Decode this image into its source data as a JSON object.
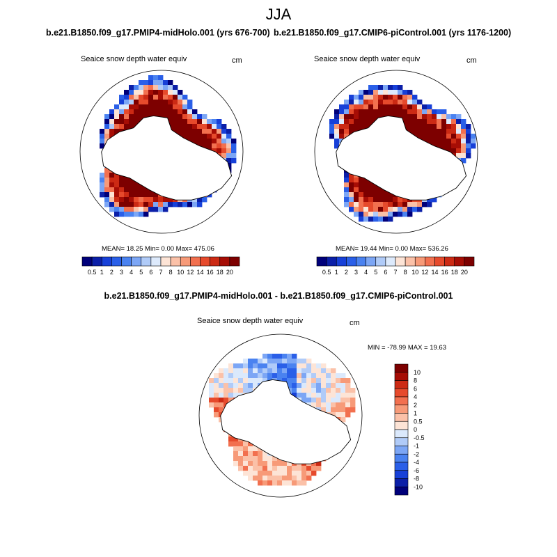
{
  "season": "JJA",
  "colors": {
    "abs_scale": [
      "#00007a",
      "#0b1fa8",
      "#1740d8",
      "#2a5fe8",
      "#4a82f0",
      "#7ca6f5",
      "#b0cbf8",
      "#ddeafc",
      "#fde4d6",
      "#fbc1a8",
      "#f79a78",
      "#f2704f",
      "#e64a2c",
      "#cc2a14",
      "#a60d05",
      "#7d0000"
    ],
    "diff_scale": [
      "#00007a",
      "#0b1fa8",
      "#1740d8",
      "#2a5fe8",
      "#4a82f0",
      "#7ca6f5",
      "#b0cbf8",
      "#dbe9fc",
      "#fde4d6",
      "#fbc1a8",
      "#f79a78",
      "#f2704f",
      "#e64a2c",
      "#cc2a14",
      "#a60d05",
      "#7d0000"
    ],
    "land": "#ffffff",
    "coast": "#000000"
  },
  "panels": [
    {
      "title": "b.e21.B1850.f09_g17.PMIP4-midHolo.001 (yrs 676-700)",
      "variable": "Seaice snow depth water equiv",
      "units": "cm",
      "stats": "MEAN=  18.25  Min=    0.00  Max= 475.06"
    },
    {
      "title": "b.e21.B1850.f09_g17.CMIP6-piControl.001 (yrs 1176-1200)",
      "variable": "Seaice snow depth water equiv",
      "units": "cm",
      "stats": "MEAN=  19.44  Min=    0.00  Max= 536.26"
    },
    {
      "title": "b.e21.B1850.f09_g17.PMIP4-midHolo.001 - b.e21.B1850.f09_g17.CMIP6-piControl.001",
      "variable": "Seaice snow depth water equiv",
      "units": "cm",
      "stats": "MIN = -78.99 MAX =  19.63"
    }
  ],
  "chart_data": [
    {
      "type": "heatmap",
      "projection": "south polar stereographic",
      "title": "b.e21.B1850.f09_g17.PMIP4-midHolo.001 (yrs 676-700)",
      "variable": "Seaice snow depth water equiv",
      "units": "cm",
      "mean": 18.25,
      "min": 0.0,
      "max": 475.06,
      "colorbar_levels": [
        0.5,
        1,
        2,
        3,
        4,
        5,
        6,
        7,
        8,
        10,
        12,
        14,
        16,
        18,
        20
      ],
      "colorbar_labels": [
        "0.5",
        "1",
        "2",
        "3",
        "4",
        "5",
        "6",
        "7",
        "8",
        "10",
        "12",
        "14",
        "16",
        "18",
        "20"
      ]
    },
    {
      "type": "heatmap",
      "projection": "south polar stereographic",
      "title": "b.e21.B1850.f09_g17.CMIP6-piControl.001 (yrs 1176-1200)",
      "variable": "Seaice snow depth water equiv",
      "units": "cm",
      "mean": 19.44,
      "min": 0.0,
      "max": 536.26,
      "colorbar_levels": [
        0.5,
        1,
        2,
        3,
        4,
        5,
        6,
        7,
        8,
        10,
        12,
        14,
        16,
        18,
        20
      ],
      "colorbar_labels": [
        "0.5",
        "1",
        "2",
        "3",
        "4",
        "5",
        "6",
        "7",
        "8",
        "10",
        "12",
        "14",
        "16",
        "18",
        "20"
      ]
    },
    {
      "type": "heatmap",
      "projection": "south polar stereographic",
      "title": "b.e21.B1850.f09_g17.PMIP4-midHolo.001 - b.e21.B1850.f09_g17.CMIP6-piControl.001",
      "variable": "Seaice snow depth water equiv",
      "units": "cm",
      "min": -78.99,
      "max": 19.63,
      "colorbar_levels": [
        -10,
        -8,
        -6,
        -4,
        -2,
        -1,
        -0.5,
        0,
        0.5,
        1,
        2,
        4,
        6,
        8,
        10
      ],
      "colorbar_labels": [
        "10",
        "8",
        "6",
        "4",
        "2",
        "1",
        "0.5",
        "0",
        "-0.5",
        "-1",
        "-2",
        "-4",
        "-6",
        "-8",
        "-10"
      ]
    }
  ]
}
